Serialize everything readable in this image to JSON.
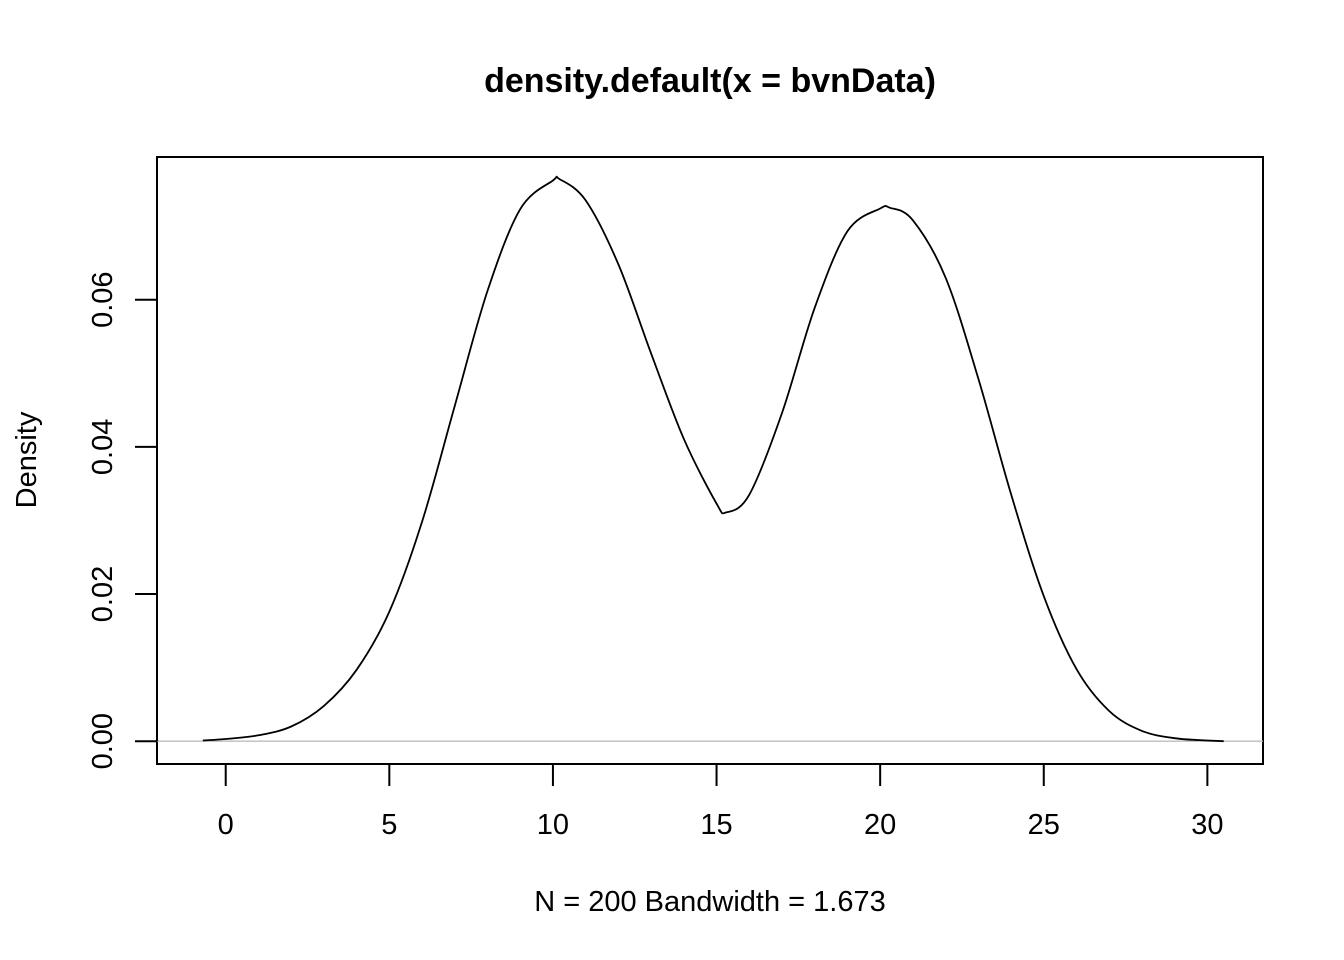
{
  "chart_data": {
    "type": "line",
    "title": "density.default(x = bvnData)",
    "xlabel": "N = 200   Bandwidth = 1.673",
    "ylabel": "Density",
    "xlim": [
      -2.1,
      31.7
    ],
    "ylim": [
      -0.0031,
      0.0794
    ],
    "x_ticks": [
      "0",
      "5",
      "10",
      "15",
      "20",
      "25",
      "30"
    ],
    "y_ticks": [
      "0.00",
      "0.02",
      "0.04",
      "0.06"
    ],
    "baseline": 0,
    "series": [
      {
        "x": [
          -0.7,
          0,
          1,
          2,
          3,
          4,
          5,
          6,
          7,
          8,
          9,
          10,
          10.2,
          11,
          12,
          13,
          14,
          15,
          15.3,
          16,
          17,
          18,
          19,
          20,
          20.3,
          21,
          22,
          23,
          24,
          25,
          26,
          27,
          28,
          29,
          30,
          30.5
        ],
        "y": [
          0.0001,
          0.0003,
          0.0008,
          0.002,
          0.0048,
          0.0097,
          0.0176,
          0.0298,
          0.0456,
          0.0612,
          0.0723,
          0.0762,
          0.0764,
          0.0735,
          0.0648,
          0.0527,
          0.0411,
          0.0323,
          0.0311,
          0.0335,
          0.0446,
          0.0589,
          0.0693,
          0.0724,
          0.0725,
          0.0708,
          0.063,
          0.0493,
          0.0336,
          0.0197,
          0.0098,
          0.0041,
          0.0014,
          0.0004,
          0.0001,
          0.0
        ]
      }
    ]
  }
}
